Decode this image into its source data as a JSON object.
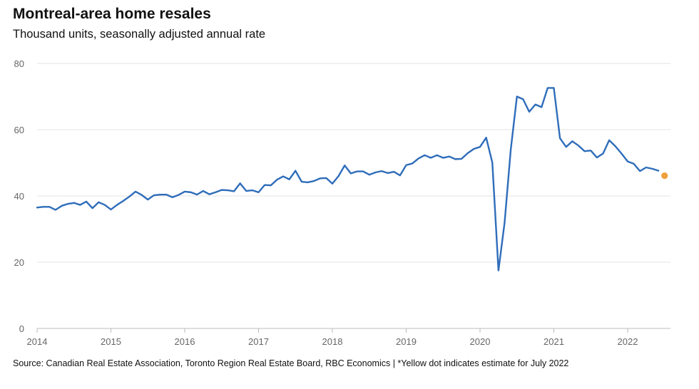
{
  "title": "Montreal-area home resales",
  "subtitle": "Thousand units, seasonally adjusted annual rate",
  "source": "Source: Canadian Real Estate Association, Toronto Region Real Estate Board, RBC Economics | *Yellow dot indicates estimate for July 2022",
  "colors": {
    "line": "#2f6dbb",
    "estimate": "#f0a03a",
    "grid": "#e3e3e3",
    "axis": "#bbbbbb"
  },
  "chart_data": {
    "type": "line",
    "title": "Montreal-area home resales",
    "ylabel": "Thousand units, seasonally adjusted annual rate",
    "xlabel": "",
    "ylim": [
      0,
      80
    ],
    "yticks": [
      0,
      20,
      40,
      60,
      80
    ],
    "xlim": [
      2014.0,
      2022.58
    ],
    "xticks": [
      2014,
      2015,
      2016,
      2017,
      2018,
      2019,
      2020,
      2021,
      2022
    ],
    "series": [
      {
        "name": "Home resales",
        "start": 2014.0,
        "step": 0.0833333,
        "values": [
          36.5,
          36.7,
          36.7,
          35.8,
          37.0,
          37.6,
          37.9,
          37.3,
          38.3,
          36.3,
          38.1,
          37.3,
          35.9,
          37.3,
          38.5,
          39.8,
          41.3,
          40.3,
          38.9,
          40.2,
          40.4,
          40.4,
          39.6,
          40.3,
          41.3,
          41.1,
          40.4,
          41.5,
          40.5,
          41.1,
          41.8,
          41.7,
          41.4,
          43.8,
          41.5,
          41.7,
          41.1,
          43.3,
          43.2,
          44.9,
          45.9,
          45.0,
          47.6,
          44.3,
          44.1,
          44.5,
          45.3,
          45.4,
          43.7,
          46.0,
          49.2,
          46.8,
          47.4,
          47.4,
          46.4,
          47.1,
          47.5,
          46.9,
          47.3,
          46.2,
          49.3,
          49.8,
          51.3,
          52.3,
          51.5,
          52.3,
          51.5,
          51.9,
          51.1,
          51.2,
          52.9,
          54.2,
          54.8,
          57.6,
          50.1,
          17.5,
          32.0,
          54.0,
          70.0,
          69.2,
          65.4,
          67.6,
          66.8,
          72.6,
          72.6,
          57.4,
          54.8,
          56.5,
          55.2,
          53.5,
          53.7,
          51.6,
          52.8,
          56.8,
          55.0,
          52.8,
          50.4,
          49.7,
          47.5,
          48.6,
          48.2,
          47.6
        ]
      }
    ],
    "estimate": {
      "label": "estimate for July 2022",
      "x": 2022.5,
      "y": 46.1
    }
  }
}
